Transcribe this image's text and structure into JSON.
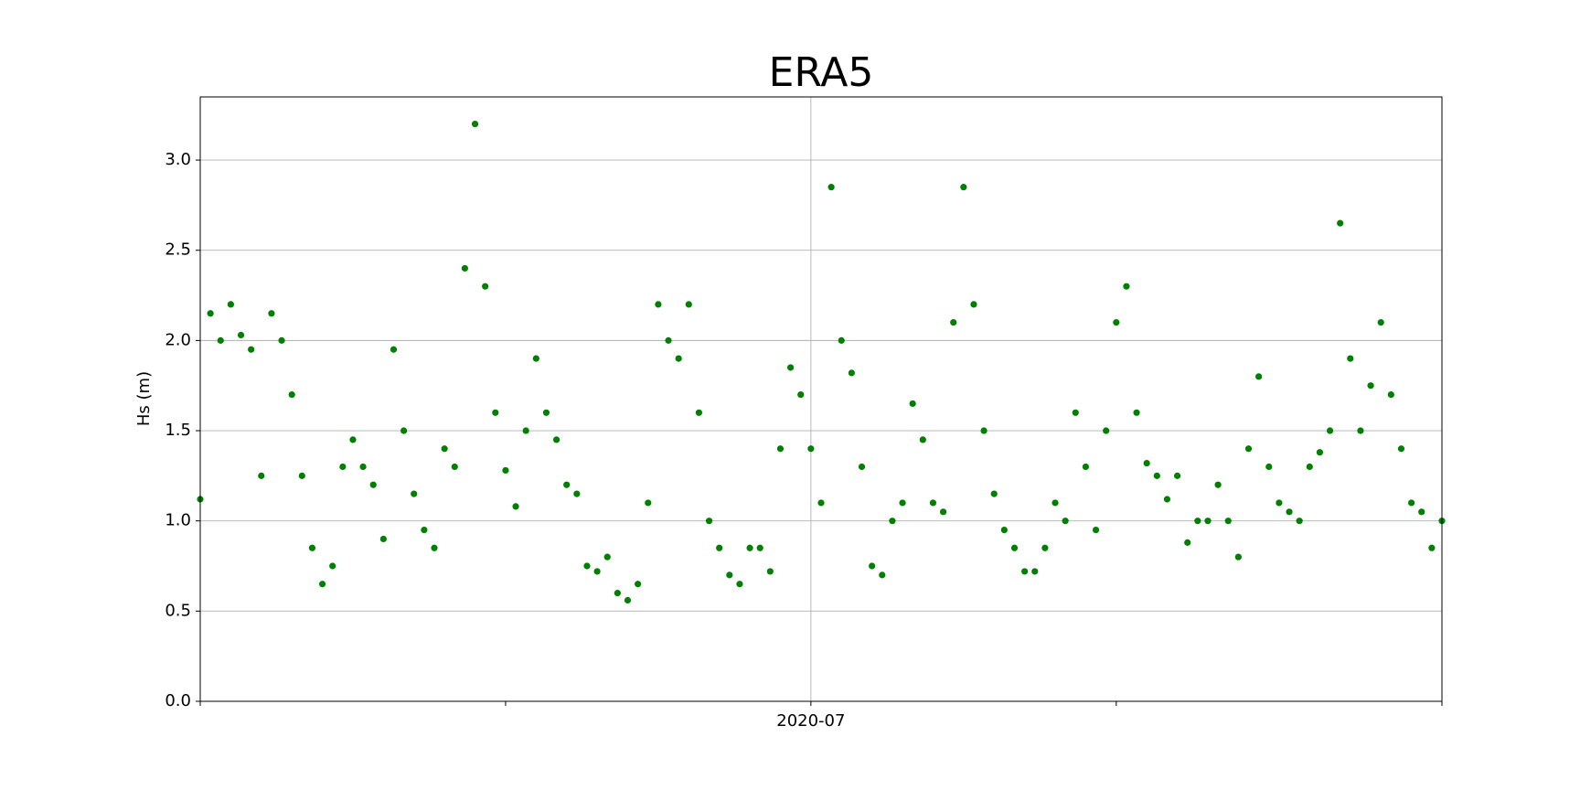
{
  "chart_data": {
    "type": "scatter",
    "title": "ERA5",
    "ylabel": "Hs (m)",
    "color": "#008000",
    "grid": true,
    "xlim": [
      -30,
      31
    ],
    "xticks": [
      {
        "value": -30,
        "label": null
      },
      {
        "value": -15,
        "label": null
      },
      {
        "value": 0,
        "label": "2020-07"
      },
      {
        "value": 15,
        "label": null
      },
      {
        "value": 31,
        "label": null
      }
    ],
    "ylim": [
      0,
      3.35
    ],
    "yticks": [
      {
        "value": 0,
        "label": "0.0"
      },
      0.5,
      {
        "value": 1,
        "label": "1.0"
      },
      1.5,
      {
        "value": 2,
        "label": "2.0"
      },
      2.5,
      {
        "value": 3,
        "label": "3.0"
      }
    ],
    "x": [
      -30,
      -29.5,
      -29,
      -28.5,
      -28,
      -27.5,
      -27,
      -26.5,
      -26,
      -25.5,
      -25,
      -24.5,
      -24,
      -23.5,
      -23,
      -22.5,
      -22,
      -21.5,
      -21,
      -20.5,
      -20,
      -19.5,
      -19,
      -18.5,
      -18,
      -17.5,
      -17,
      -16.5,
      -16,
      -15.5,
      -15,
      -14.5,
      -14,
      -13.5,
      -13,
      -12.5,
      -12,
      -11.5,
      -11,
      -10.5,
      -10,
      -9.5,
      -9,
      -8.5,
      -8,
      -7.5,
      -7,
      -6.5,
      -6,
      -5.5,
      -5,
      -4.5,
      -4,
      -3.5,
      -3,
      -2.5,
      -2,
      -1.5,
      -1,
      -0.5,
      0,
      0.5,
      1,
      1.5,
      2,
      2.5,
      3,
      3.5,
      4,
      4.5,
      5,
      5.5,
      6,
      6.5,
      7,
      7.5,
      8,
      8.5,
      9,
      9.5,
      10,
      10.5,
      11,
      11.5,
      12,
      12.5,
      13,
      13.5,
      14,
      14.5,
      15,
      15.5,
      16,
      16.5,
      17,
      17.5,
      18,
      18.5,
      19,
      19.5,
      20,
      20.5,
      21,
      21.5,
      22,
      22.5,
      23,
      23.5,
      24,
      24.5,
      25,
      25.5,
      26,
      26.5,
      27,
      27.5,
      28,
      28.5,
      29,
      29.5,
      30,
      30.5,
      31
    ],
    "values": [
      1.12,
      2.15,
      2.0,
      2.2,
      2.03,
      1.95,
      1.25,
      2.15,
      2.0,
      1.7,
      1.25,
      0.85,
      0.65,
      0.75,
      1.3,
      1.45,
      1.3,
      1.2,
      0.9,
      1.95,
      1.5,
      1.15,
      0.95,
      0.85,
      1.4,
      1.3,
      2.4,
      3.2,
      2.3,
      1.6,
      1.28,
      1.08,
      1.5,
      1.9,
      1.6,
      1.45,
      1.2,
      1.15,
      0.75,
      0.72,
      0.8,
      0.6,
      0.56,
      0.65,
      1.1,
      2.2,
      2.0,
      1.9,
      2.2,
      1.6,
      1.0,
      0.85,
      0.7,
      0.65,
      0.85,
      0.85,
      0.72,
      1.4,
      1.85,
      1.7,
      1.4,
      1.1,
      2.85,
      2.0,
      1.82,
      1.3,
      0.75,
      0.7,
      1.0,
      1.1,
      1.65,
      1.45,
      1.1,
      1.05,
      2.1,
      2.85,
      2.2,
      1.5,
      1.15,
      0.95,
      0.85,
      0.72,
      0.72,
      0.85,
      1.1,
      1.0,
      1.6,
      1.3,
      0.95,
      1.5,
      2.1,
      2.3,
      1.6,
      1.32,
      1.25,
      1.12,
      1.25,
      0.88,
      1.0,
      1.0,
      1.2,
      1.0,
      0.8,
      1.4,
      1.8,
      1.3,
      1.1,
      1.05,
      1.0,
      1.3,
      1.38,
      1.5,
      2.65,
      1.9,
      1.5,
      1.75,
      2.1,
      1.7,
      1.4,
      1.1,
      1.05,
      0.85,
      1.0
    ]
  }
}
